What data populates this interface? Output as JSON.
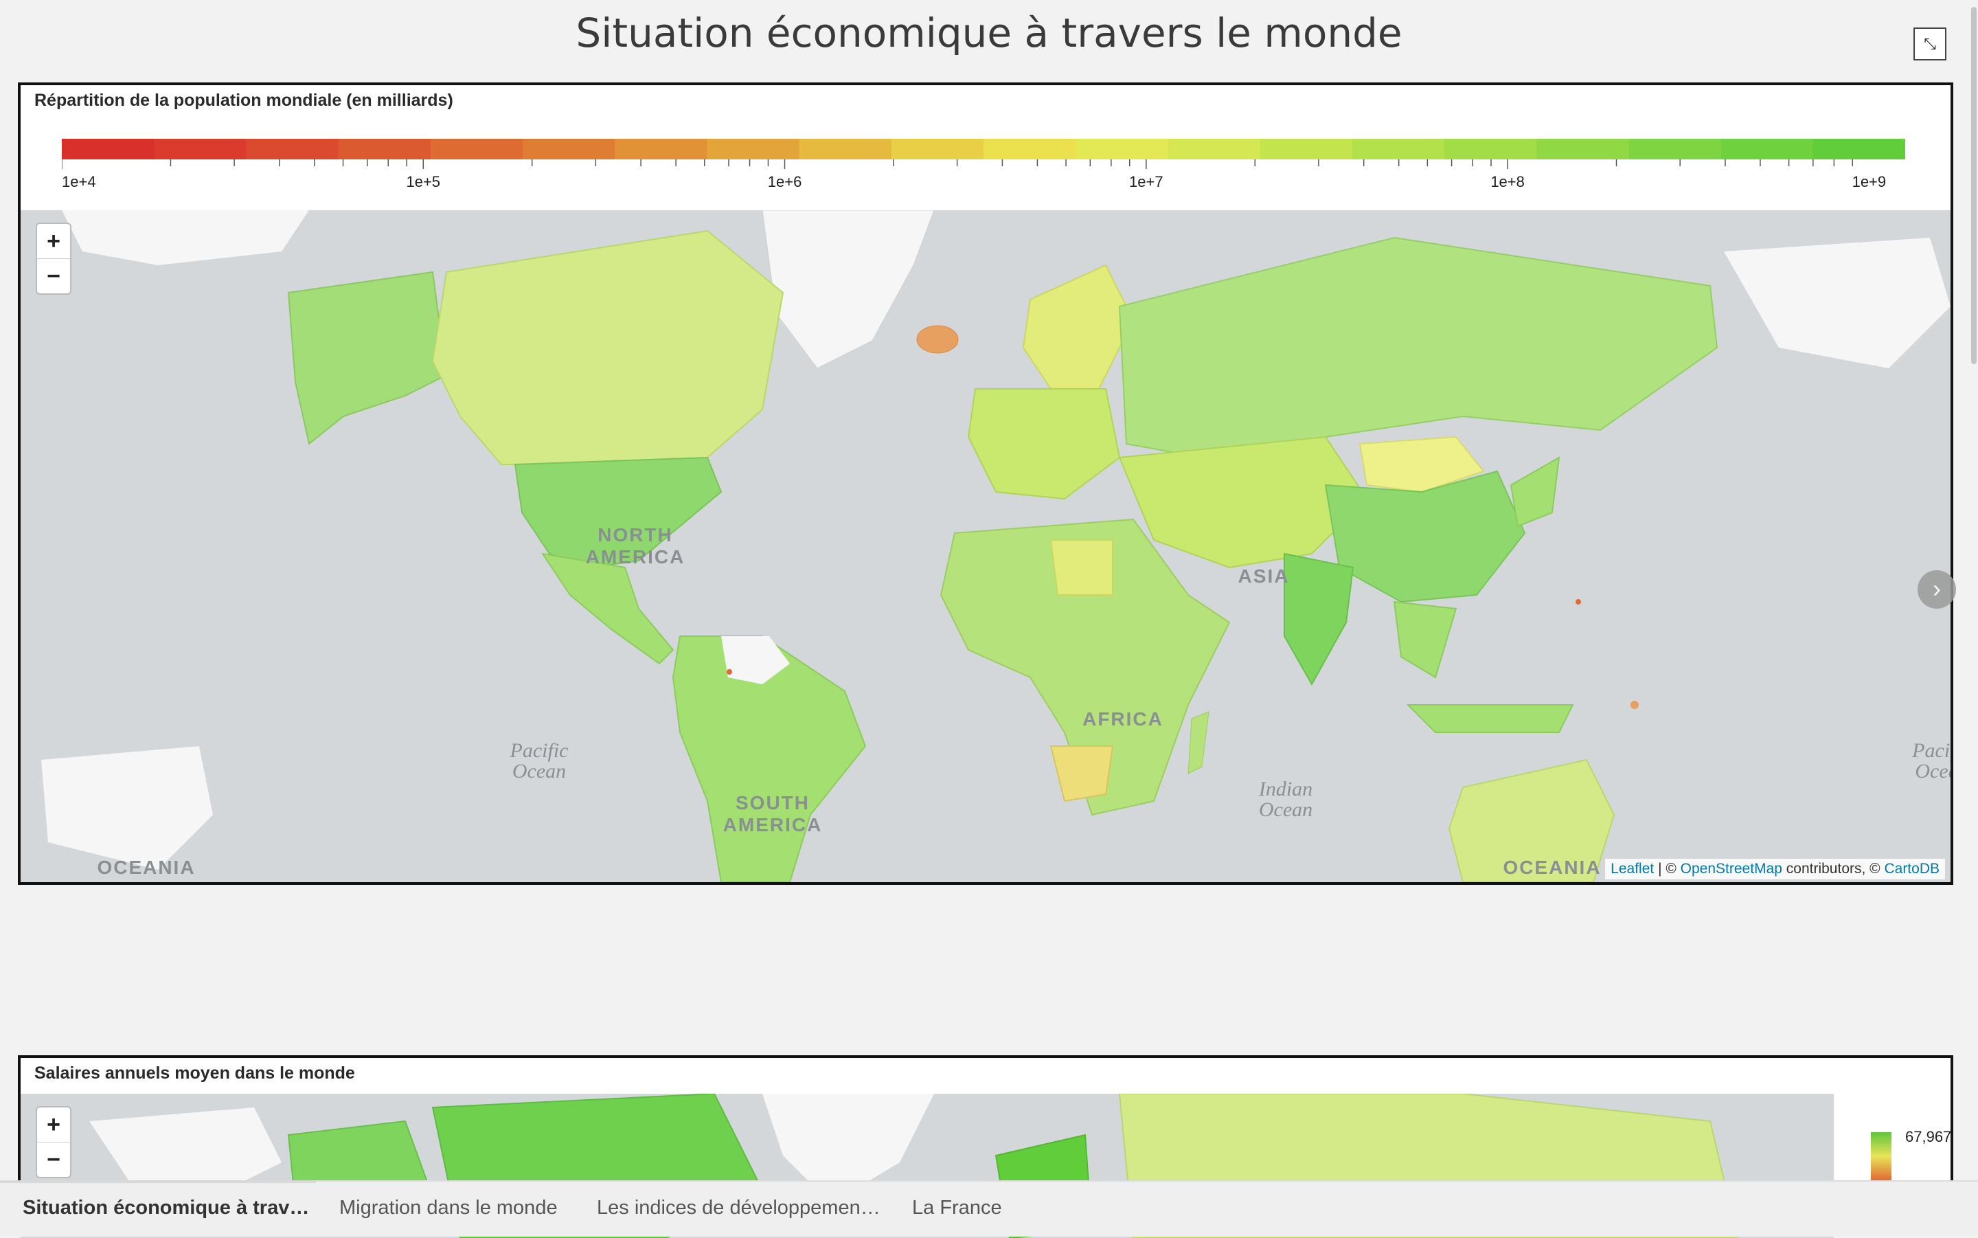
{
  "page": {
    "title": "Situation économique à travers le monde"
  },
  "panel1": {
    "title": "Répartition de la population mondiale (en milliards)",
    "legend_ticks": [
      "1e+4",
      "1e+5",
      "1e+6",
      "1e+7",
      "1e+8",
      "1e+9"
    ],
    "legend_colors": [
      "#d9302b",
      "#da3b2c",
      "#db4a2e",
      "#dc5a30",
      "#dd6b32",
      "#df7d34",
      "#e19136",
      "#e3a53a",
      "#e6ba3e",
      "#e9cf45",
      "#ebe14f",
      "#e3e955",
      "#d5e752",
      "#c4e44e",
      "#b3e14b",
      "#a2dd47",
      "#90d944",
      "#7fd541",
      "#6fd13e",
      "#62cd3b"
    ],
    "zoom_in": "+",
    "zoom_out": "−",
    "map_labels": [
      "NORTH",
      "AMERICA",
      "SOUTH",
      "AMERICA",
      "AFRICA",
      "ASIA",
      "OCEANIA",
      "OCEANIA",
      "Pacific",
      "Ocean",
      "Indian",
      "Ocean",
      "Pacifi",
      "Ocea"
    ],
    "attribution": {
      "leaflet": "Leaflet",
      "sep": " | © ",
      "osm": "OpenStreetMap",
      "contrib": " contributors, © ",
      "carto": "CartoDB"
    }
  },
  "panel2": {
    "title": "Salaires annuels moyen dans le monde",
    "zoom_in": "+",
    "zoom_out": "−",
    "legend_max": "67,967"
  },
  "tabs": [
    {
      "label": "Situation économique à trav…"
    },
    {
      "label": "Migration dans le monde"
    },
    {
      "label": "Les indices de développemen…"
    },
    {
      "label": "La France"
    }
  ]
}
